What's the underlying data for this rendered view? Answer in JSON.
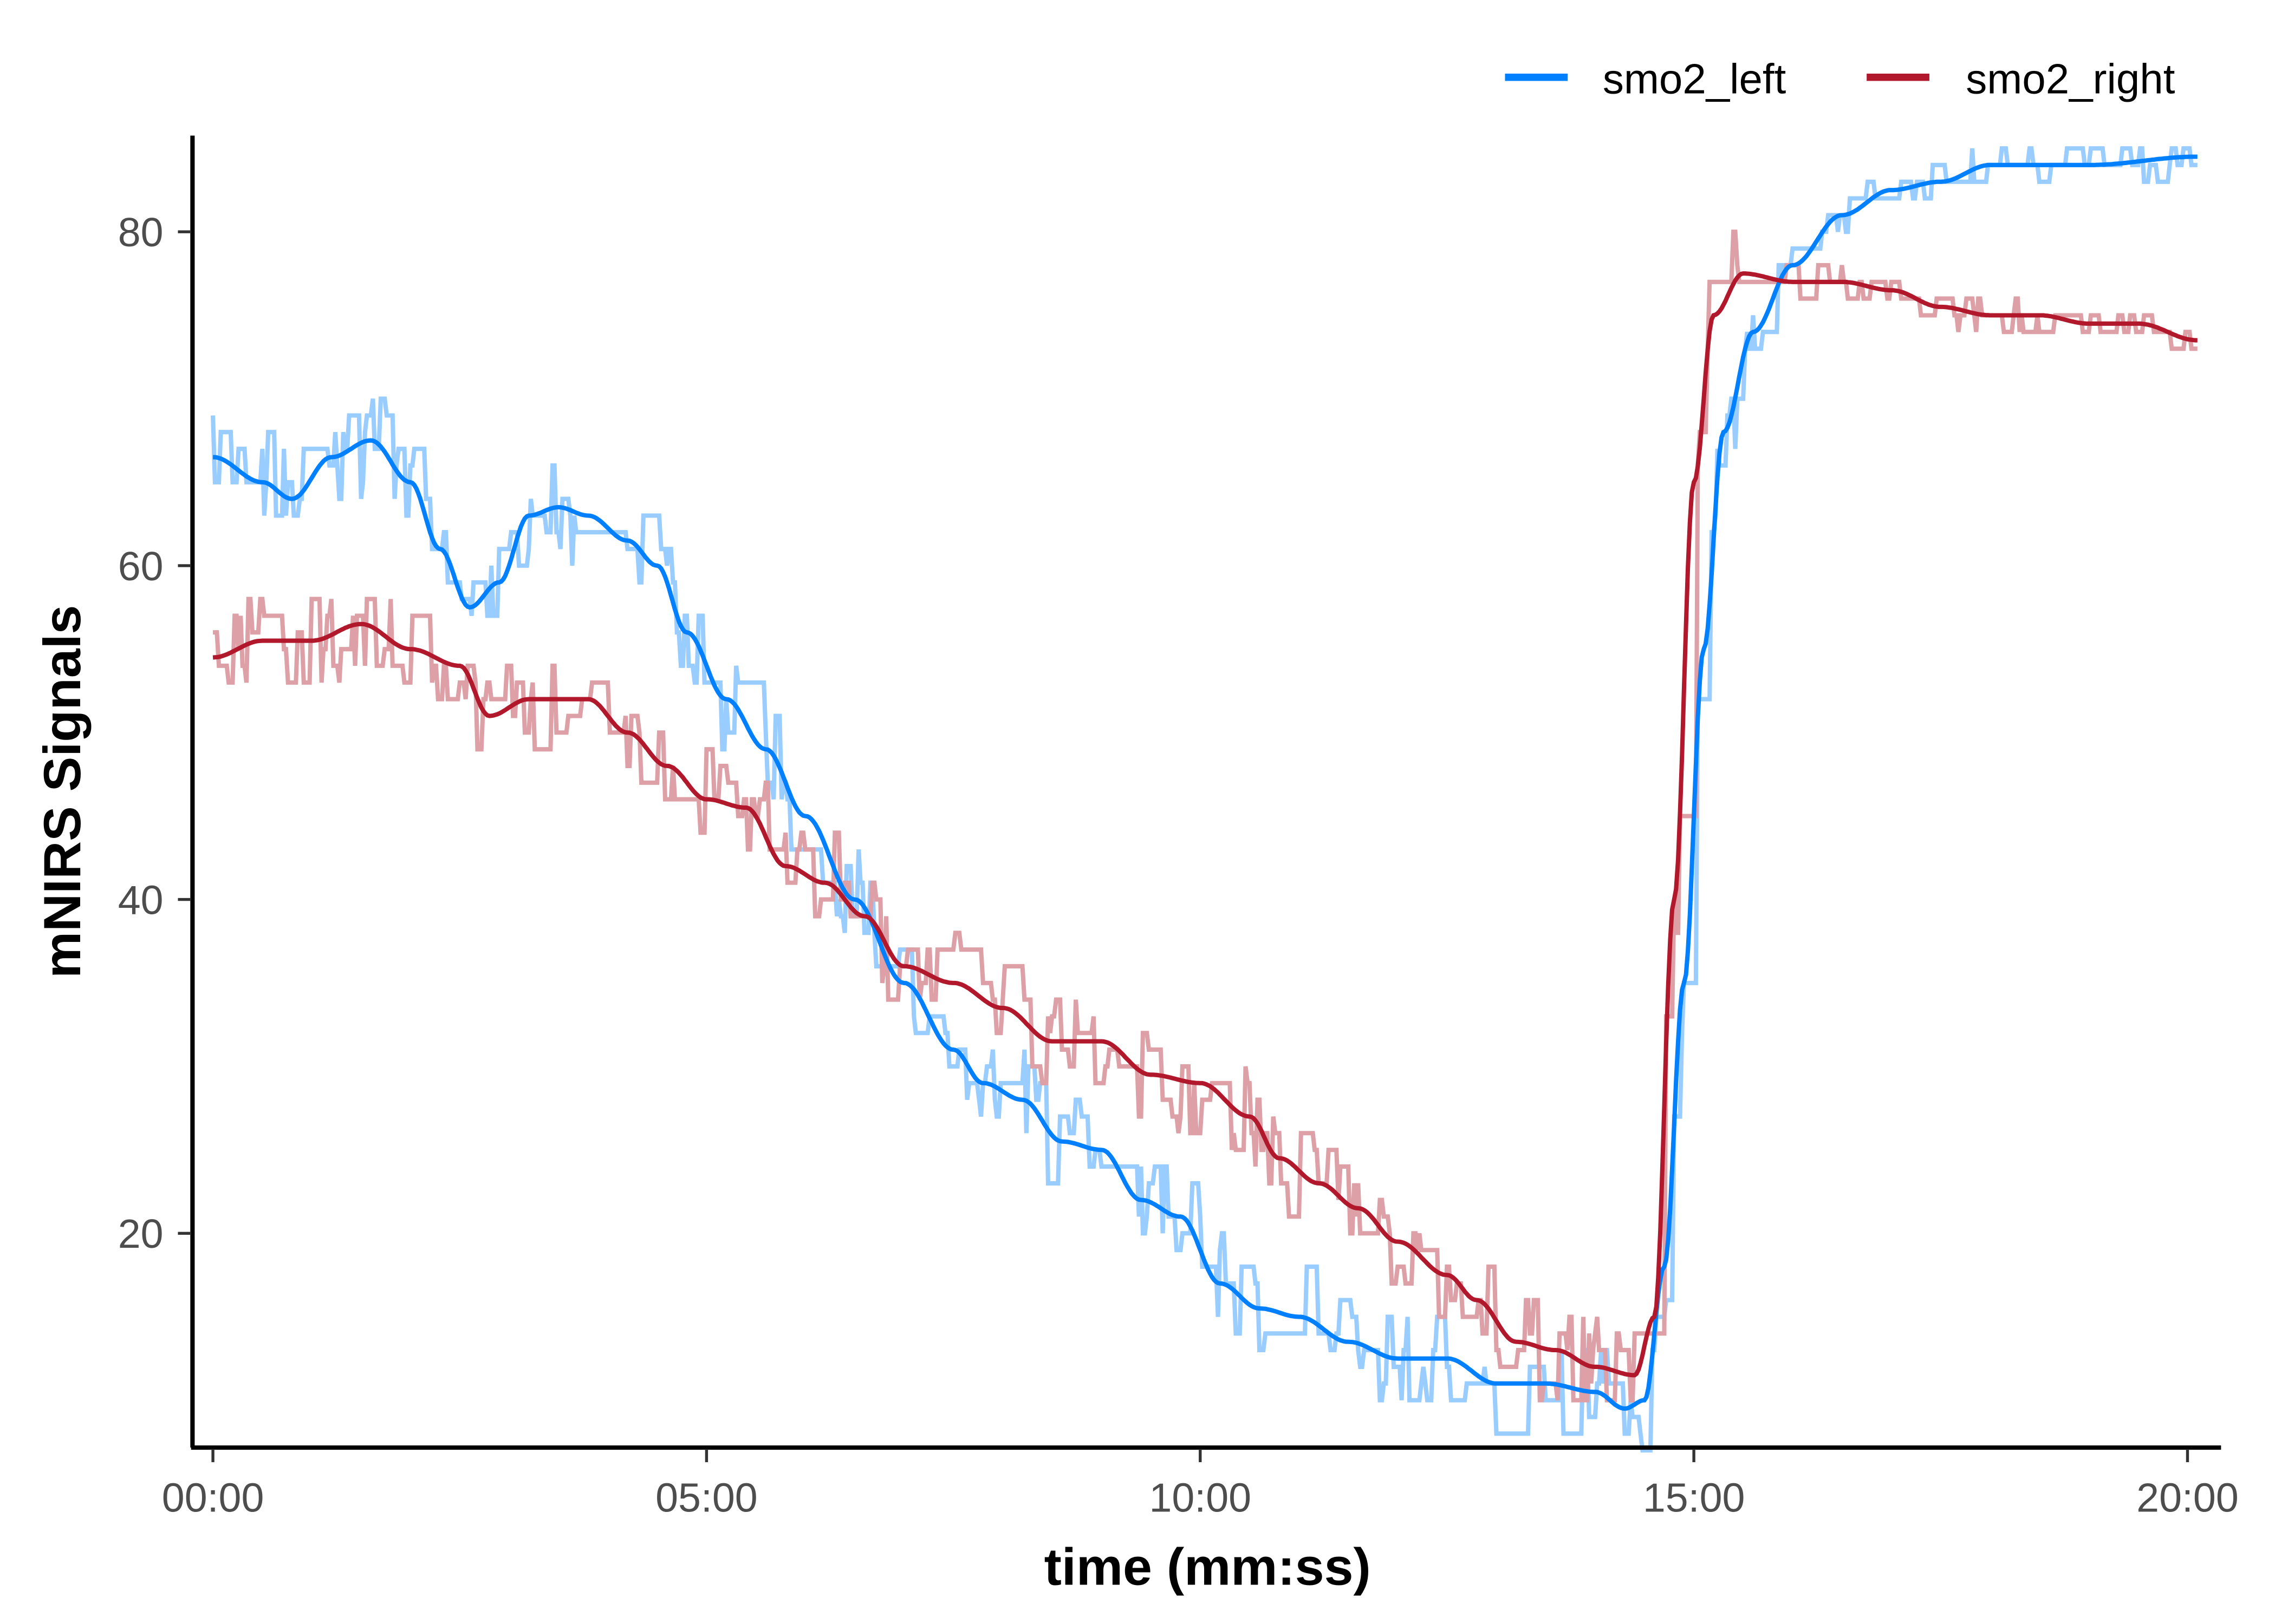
{
  "chart_data": {
    "type": "line",
    "title": "",
    "xlabel": "time (mm:ss)",
    "ylabel": "mNIRS Signals",
    "xlim_minutes": [
      -0.2,
      20.5
    ],
    "ylim": [
      7.5,
      85.5
    ],
    "x_ticks": [
      {
        "value": 0,
        "label": "00:00"
      },
      {
        "value": 5,
        "label": "05:00"
      },
      {
        "value": 10,
        "label": "10:00"
      },
      {
        "value": 15,
        "label": "15:00"
      },
      {
        "value": 20,
        "label": "20:00"
      }
    ],
    "y_ticks": [
      {
        "value": 20,
        "label": "20"
      },
      {
        "value": 40,
        "label": "40"
      },
      {
        "value": 60,
        "label": "60"
      },
      {
        "value": 80,
        "label": "80"
      }
    ],
    "grid": false,
    "legend_position": "top-right",
    "series": [
      {
        "name": "smo2_left",
        "color": "#0080FF",
        "raw_color": "#99CCFF",
        "x": [
          0,
          0.5,
          0.8,
          1.2,
          1.6,
          2,
          2.3,
          2.6,
          2.9,
          3.2,
          3.5,
          3.8,
          4.2,
          4.5,
          4.8,
          5.2,
          5.6,
          6,
          6.5,
          7,
          7.5,
          7.8,
          8.2,
          8.6,
          9,
          9.4,
          9.8,
          10.2,
          10.6,
          11,
          11.5,
          12,
          12.5,
          13,
          13.5,
          14,
          14.3,
          14.5,
          14.7,
          14.9,
          15.1,
          15.3,
          15.6,
          16,
          16.5,
          17,
          17.5,
          18,
          19,
          20.1
        ],
        "y": [
          66.5,
          65,
          64,
          66.5,
          67.5,
          65,
          61,
          57.5,
          59,
          63,
          63.5,
          63,
          61.5,
          60,
          56,
          52,
          49,
          45,
          40,
          35,
          31,
          29,
          28,
          25.5,
          25,
          22,
          21,
          17,
          15.5,
          15,
          13.5,
          12.5,
          12.5,
          11,
          11,
          10.5,
          9.5,
          10,
          18,
          35,
          55,
          68,
          74,
          78,
          81,
          82.5,
          83,
          84,
          84,
          84.5
        ]
      },
      {
        "name": "smo2_right",
        "color": "#B2182B",
        "raw_color": "#DCA0A6",
        "x": [
          0,
          0.5,
          1,
          1.5,
          2,
          2.5,
          2.8,
          3.2,
          3.5,
          3.8,
          4.2,
          4.6,
          5,
          5.4,
          5.8,
          6.2,
          6.6,
          7,
          7.5,
          8,
          8.5,
          9,
          9.5,
          10,
          10.5,
          10.8,
          11.2,
          11.6,
          12,
          12.5,
          12.8,
          13.2,
          13.6,
          14,
          14.4,
          14.6,
          14.8,
          15,
          15.2,
          15.5,
          16,
          16.5,
          17,
          17.5,
          18,
          18.5,
          19,
          19.5,
          20.1
        ],
        "y": [
          54.5,
          55.5,
          55.5,
          56.5,
          55,
          54,
          51,
          52,
          52,
          52,
          50,
          48,
          46,
          45.5,
          42,
          41,
          39,
          36,
          35,
          33.5,
          31.5,
          31.5,
          29.5,
          29,
          27,
          24.5,
          23,
          21.5,
          19.5,
          17.5,
          16,
          13.5,
          13,
          12,
          11.5,
          15,
          40,
          65,
          75,
          77.5,
          77,
          77,
          76.5,
          75.5,
          75,
          75,
          74.5,
          74.5,
          73.5
        ]
      }
    ]
  }
}
